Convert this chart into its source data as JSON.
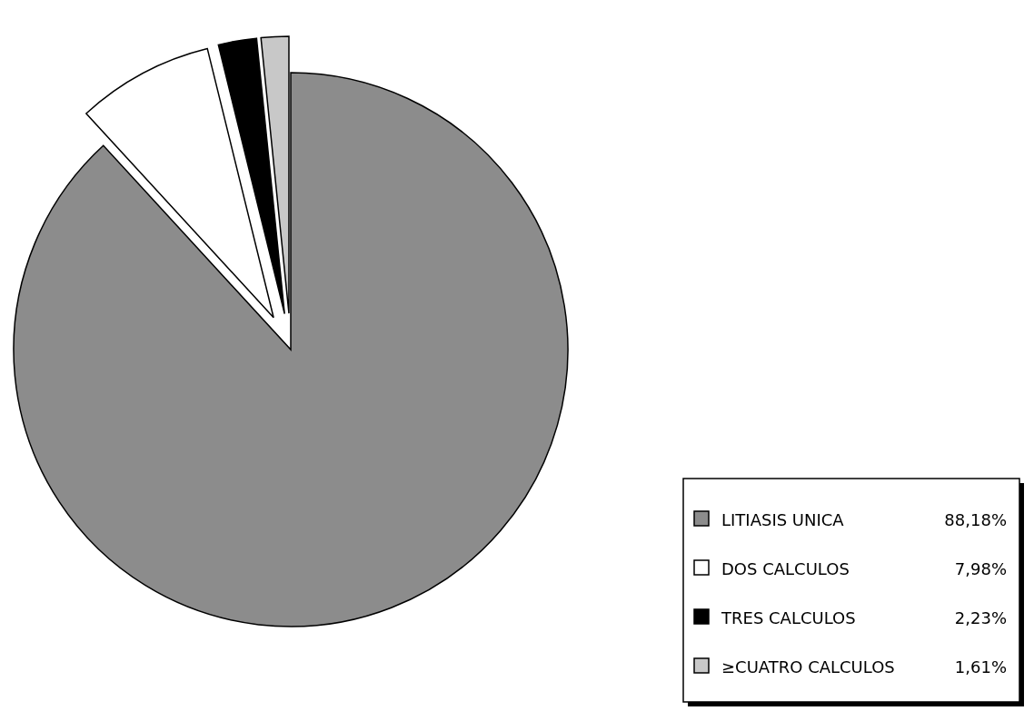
{
  "chart_data": {
    "type": "pie",
    "categories": [
      "LITIASIS UNICA",
      "DOS CALCULOS",
      "TRES CALCULOS",
      "≥CUATRO CALCULOS"
    ],
    "values": [
      88.18,
      7.98,
      2.23,
      1.61
    ],
    "value_labels": [
      "88,18%",
      "7,98%",
      "2,23%",
      "1,61%"
    ],
    "colors": [
      "#8c8c8c",
      "#ffffff",
      "#000000",
      "#c8c8c8"
    ],
    "legend": "bottom right"
  }
}
